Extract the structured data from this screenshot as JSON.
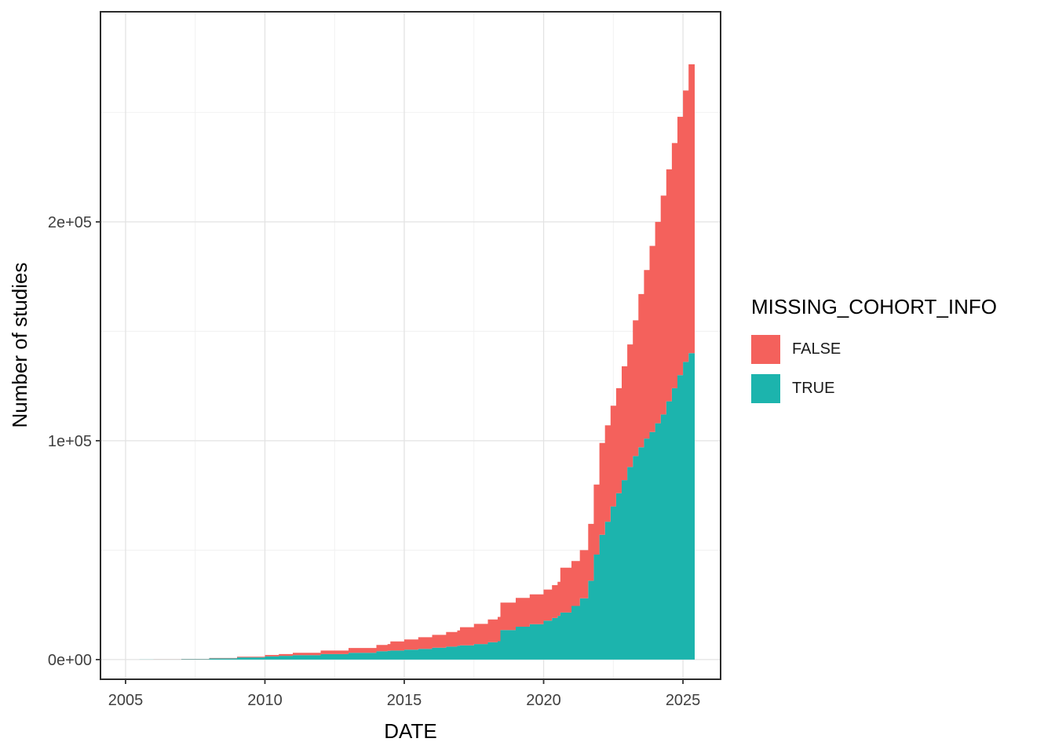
{
  "legend": {
    "title": "MISSING_COHORT_INFO",
    "items": [
      {
        "label": "FALSE",
        "color": "#F4615C"
      },
      {
        "label": "TRUE",
        "color": "#1CB4AD"
      }
    ]
  },
  "chart_data": {
    "type": "area",
    "stacked": true,
    "title": "",
    "xlabel": "DATE",
    "ylabel": "Number of studies",
    "legend_title": "MISSING_COHORT_INFO",
    "legend_position": "right",
    "grid": true,
    "xlim": [
      2004.1,
      2026.35
    ],
    "ylim": [
      -9000,
      296000
    ],
    "x_major_ticks": [
      {
        "value": 2005,
        "label": "2005"
      },
      {
        "value": 2010,
        "label": "2010"
      },
      {
        "value": 2015,
        "label": "2015"
      },
      {
        "value": 2020,
        "label": "2020"
      },
      {
        "value": 2025,
        "label": "2025"
      }
    ],
    "x_minor_ticks": [
      2007.5,
      2012.5,
      2017.5,
      2022.5
    ],
    "y_major_ticks": [
      {
        "value": 0,
        "label": "0e+00"
      },
      {
        "value": 100000,
        "label": "1e+05"
      },
      {
        "value": 200000,
        "label": "2e+05"
      }
    ],
    "y_minor_ticks": [
      50000,
      150000,
      250000
    ],
    "colors": {
      "grid_major": "#E3E3E3",
      "grid_minor": "#F0F0F0",
      "panel_border": "#2B2B2B",
      "panel_background": "#FFFFFF",
      "tick": "#333333",
      "tick_label": "#404040",
      "axis_title": "#000000"
    },
    "x": [
      2005.5,
      2006,
      2007,
      2008,
      2009,
      2010,
      2010.5,
      2011,
      2012,
      2013,
      2014,
      2014.4,
      2014.5,
      2015,
      2015.5,
      2016,
      2016.5,
      2016.9,
      2017,
      2017.5,
      2018,
      2018.35,
      2018.45,
      2019,
      2019.5,
      2020,
      2020.3,
      2020.5,
      2020.6,
      2021,
      2021.3,
      2021.6,
      2021.8,
      2022,
      2022.2,
      2022.4,
      2022.6,
      2022.8,
      2023,
      2023.2,
      2023.4,
      2023.6,
      2023.8,
      2024,
      2024.2,
      2024.4,
      2024.6,
      2024.8,
      2025,
      2025.2,
      2025.42
    ],
    "stack_order_bottom_to_top": [
      "TRUE",
      "FALSE"
    ],
    "series": [
      {
        "name": "TRUE",
        "color": "#1CB4AD",
        "values": [
          20,
          80,
          250,
          550,
          1000,
          1500,
          1700,
          2000,
          2500,
          3100,
          3800,
          4000,
          4100,
          4500,
          4900,
          5400,
          5900,
          6300,
          6500,
          7100,
          7900,
          8400,
          13500,
          15000,
          16200,
          17800,
          19000,
          20000,
          21500,
          24500,
          28000,
          36000,
          48000,
          57000,
          63000,
          70000,
          76000,
          82000,
          88000,
          93000,
          97000,
          101000,
          104000,
          108000,
          112000,
          118000,
          124000,
          130000,
          136000,
          140000,
          143000
        ]
      },
      {
        "name": "FALSE",
        "color": "#F4615C",
        "values": [
          5,
          20,
          70,
          150,
          300,
          600,
          800,
          1100,
          1600,
          2200,
          2900,
          3100,
          4200,
          4700,
          5300,
          5900,
          6700,
          7000,
          8300,
          9200,
          10400,
          11100,
          12500,
          13200,
          13600,
          14200,
          15000,
          15500,
          20500,
          20500,
          22000,
          26000,
          32000,
          42000,
          44000,
          46000,
          48000,
          52000,
          56000,
          62000,
          70000,
          77000,
          85000,
          92000,
          100000,
          106000,
          112000,
          118000,
          124000,
          132000,
          138000
        ]
      }
    ]
  }
}
